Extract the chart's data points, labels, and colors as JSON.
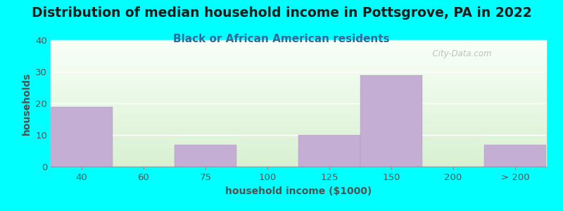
{
  "title": "Distribution of median household income in Pottsgrove, PA in 2022",
  "subtitle": "Black or African American residents",
  "xlabel": "household income ($1000)",
  "ylabel": "households",
  "background_color": "#00FFFF",
  "plot_bg_top": "#f0f8f0",
  "plot_bg_bottom": "#d8f0d0",
  "bar_color": "#c4aed4",
  "bar_edge_color": "#b09ac0",
  "categories": [
    "40",
    "60",
    "75",
    "100",
    "125",
    "150",
    "200",
    "> 200"
  ],
  "values": [
    19,
    0,
    7,
    0,
    10,
    29,
    0,
    7
  ],
  "ylim": [
    0,
    40
  ],
  "yticks": [
    0,
    10,
    20,
    30,
    40
  ],
  "title_fontsize": 13.5,
  "subtitle_fontsize": 11,
  "axis_label_fontsize": 10,
  "tick_fontsize": 9.5,
  "title_color": "#1a1a1a",
  "subtitle_color": "#336699",
  "watermark_text": "  City-Data.com",
  "watermark_color": "#b0b8b0"
}
